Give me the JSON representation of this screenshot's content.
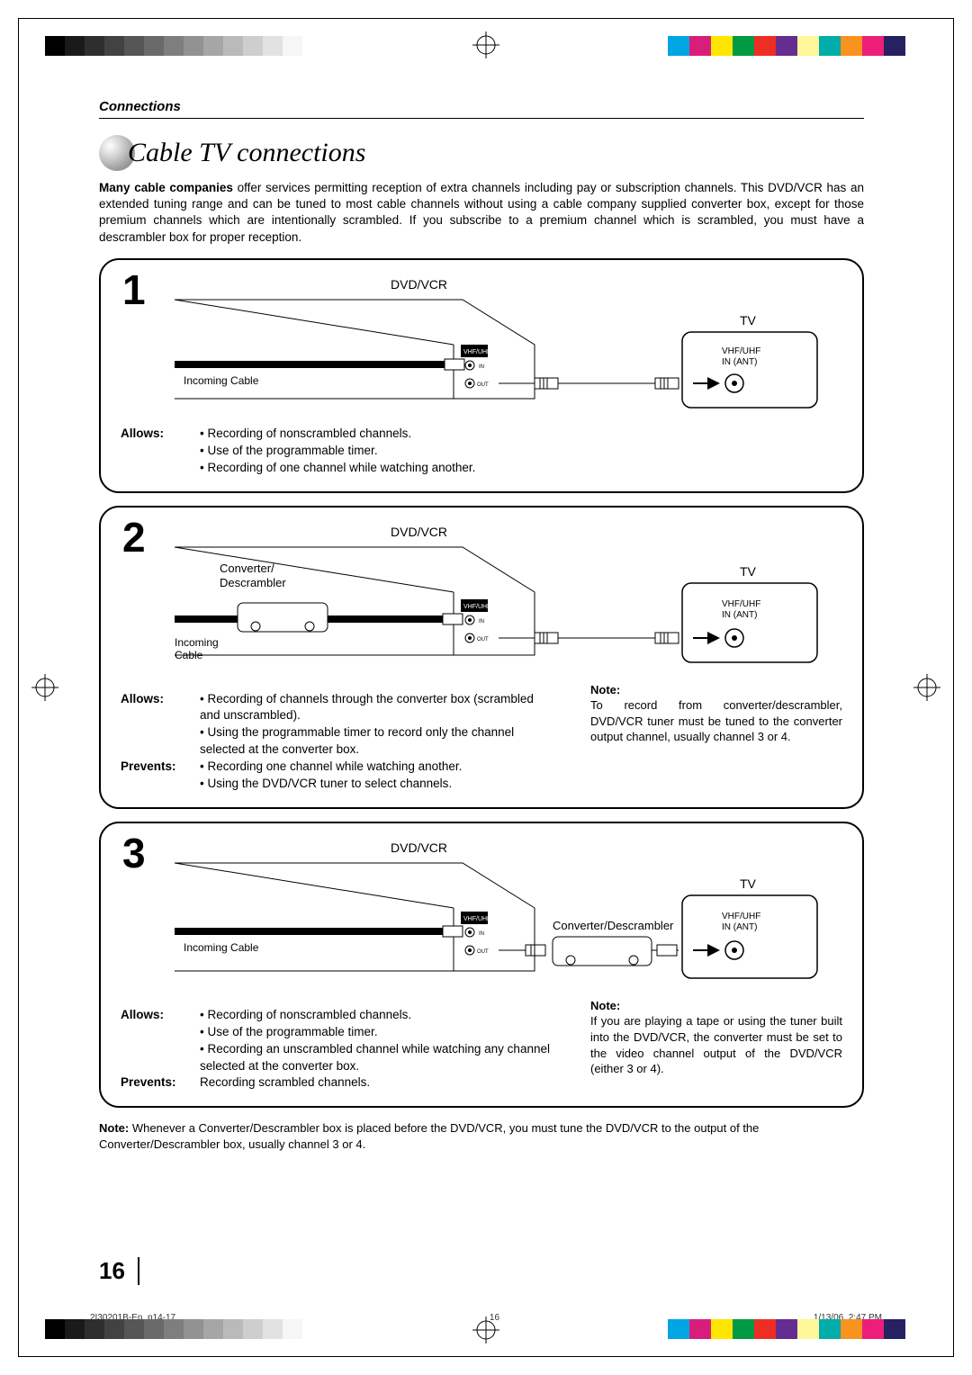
{
  "section_label": "Connections",
  "page_title": "Cable TV connections",
  "intro_bold": "Many cable companies",
  "intro": " offer services permitting reception of extra channels including pay or subscription channels. This DVD/VCR has an extended tuning range and can be tuned to most cable channels without using a cable company supplied converter box, except for those premium channels which are intentionally scrambled. If you subscribe to a premium channel which is scrambled, you must have a descrambler box for proper reception.",
  "labels": {
    "dvdvcr": "DVD/VCR",
    "tv": "TV",
    "vhf": "VHF/UHF",
    "inant": "IN (ANT)",
    "incoming": "Incoming Cable",
    "incoming2a": "Incoming",
    "incoming2b": "Cable",
    "converter": "Converter/",
    "descrambler": "Descrambler",
    "converter_descrambler": "Converter/Descrambler",
    "allows": "Allows:",
    "prevents": "Prevents:",
    "note": "Note:"
  },
  "panel1_num": "1",
  "panel1_allows": [
    "Recording of nonscrambled channels.",
    "Use of the programmable timer.",
    "Recording of one channel while watching another."
  ],
  "panel2_num": "2",
  "panel2_allows": [
    "Recording of channels through the converter box (scrambled and unscrambled).",
    "Using the programmable timer to record only the channel selected at the converter box."
  ],
  "panel2_prevents": [
    "Recording one channel while watching another.",
    "Using the DVD/VCR tuner to select channels."
  ],
  "panel2_note": "To record from converter/descrambler, DVD/VCR tuner must be tuned to the converter output channel, usually channel 3 or 4.",
  "panel3_num": "3",
  "panel3_allows": [
    "Recording of nonscrambled channels.",
    "Use of the programmable timer.",
    "Recording an unscrambled channel while watching any channel selected at the converter box."
  ],
  "panel3_prevents_text": "Recording scrambled channels.",
  "panel3_note": "If you are playing a tape or using the tuner built into the DVD/VCR, the converter must be set to the video channel output of the DVD/VCR (either 3 or 4).",
  "bottom_note_bold": "Note:",
  "bottom_note": " Whenever a Converter/Descrambler box is placed before the DVD/VCR, you must tune the DVD/VCR to the output of the Converter/Descrambler box, usually channel 3 or 4.",
  "page_number": "16",
  "footer_left": "2I30201B-En_p14-17",
  "footer_center": "16",
  "footer_right": "1/13/06, 2:47 PM",
  "bw_colors": [
    "#000000",
    "#1a1a1a",
    "#2e2e2e",
    "#424242",
    "#565656",
    "#6a6a6a",
    "#7e7e7e",
    "#929292",
    "#a6a6a6",
    "#bababa",
    "#cecece",
    "#e2e2e2",
    "#f6f6f6",
    "#ffffff"
  ],
  "spectrum_colors": [
    "#00a5e3",
    "#d81e7b",
    "#ffe600",
    "#009944",
    "#ee2e24",
    "#662d91",
    "#fff799",
    "#00ada9",
    "#f7931e",
    "#ed1e79",
    "#262261",
    "#ffffff"
  ]
}
